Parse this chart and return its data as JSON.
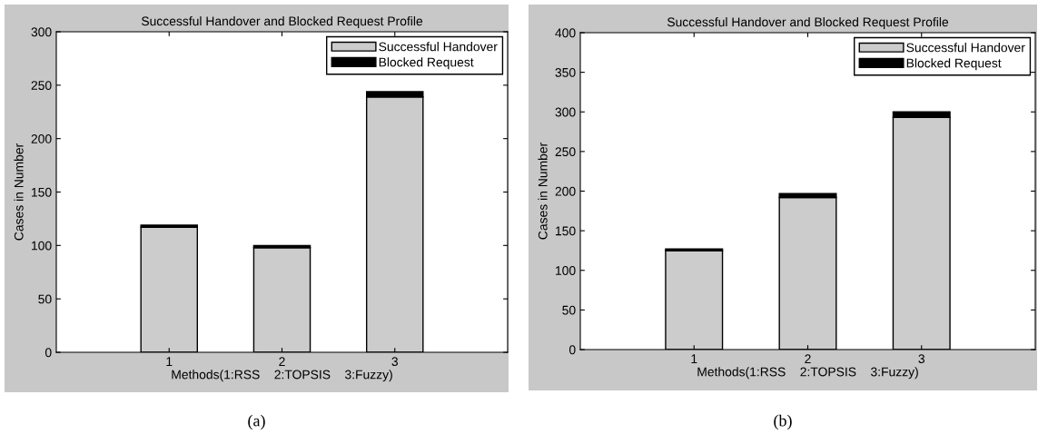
{
  "chart_data": [
    {
      "type": "bar",
      "stacked": true,
      "title": "Successful Handover and Blocked Request Profile",
      "xlabel": "Methods(1:RSS    2:TOPSIS    3:Fuzzy)",
      "ylabel": "Cases in Number",
      "x": [
        1,
        2,
        3
      ],
      "xlim": [
        0,
        4
      ],
      "xticks": [
        1,
        2,
        3
      ],
      "ylim": [
        0,
        300
      ],
      "yticks": [
        0,
        50,
        100,
        150,
        200,
        250,
        300
      ],
      "legend": "top right",
      "grid": false,
      "series": [
        {
          "name": "Successful Handover",
          "color": "#cccccc",
          "values": [
            117,
            98,
            239
          ]
        },
        {
          "name": "Blocked Request",
          "color": "#000000",
          "values": [
            2,
            2,
            5
          ]
        }
      ],
      "annotations": [
        "(a)"
      ]
    },
    {
      "type": "bar",
      "stacked": true,
      "title": "Successful Handover and Blocked Request Profile",
      "xlabel": "Methods(1:RSS    2:TOPSIS    3:Fuzzy)",
      "ylabel": "Cases in Number",
      "x": [
        1,
        2,
        3
      ],
      "xlim": [
        0,
        4
      ],
      "xticks": [
        1,
        2,
        3
      ],
      "ylim": [
        0,
        400
      ],
      "yticks": [
        0,
        50,
        100,
        150,
        200,
        250,
        300,
        350,
        400
      ],
      "legend": "top right",
      "grid": false,
      "series": [
        {
          "name": "Successful Handover",
          "color": "#cccccc",
          "values": [
            125,
            192,
            293
          ]
        },
        {
          "name": "Blocked Request",
          "color": "#000000",
          "values": [
            2,
            5,
            7
          ]
        }
      ],
      "annotations": [
        "(b)"
      ]
    }
  ]
}
